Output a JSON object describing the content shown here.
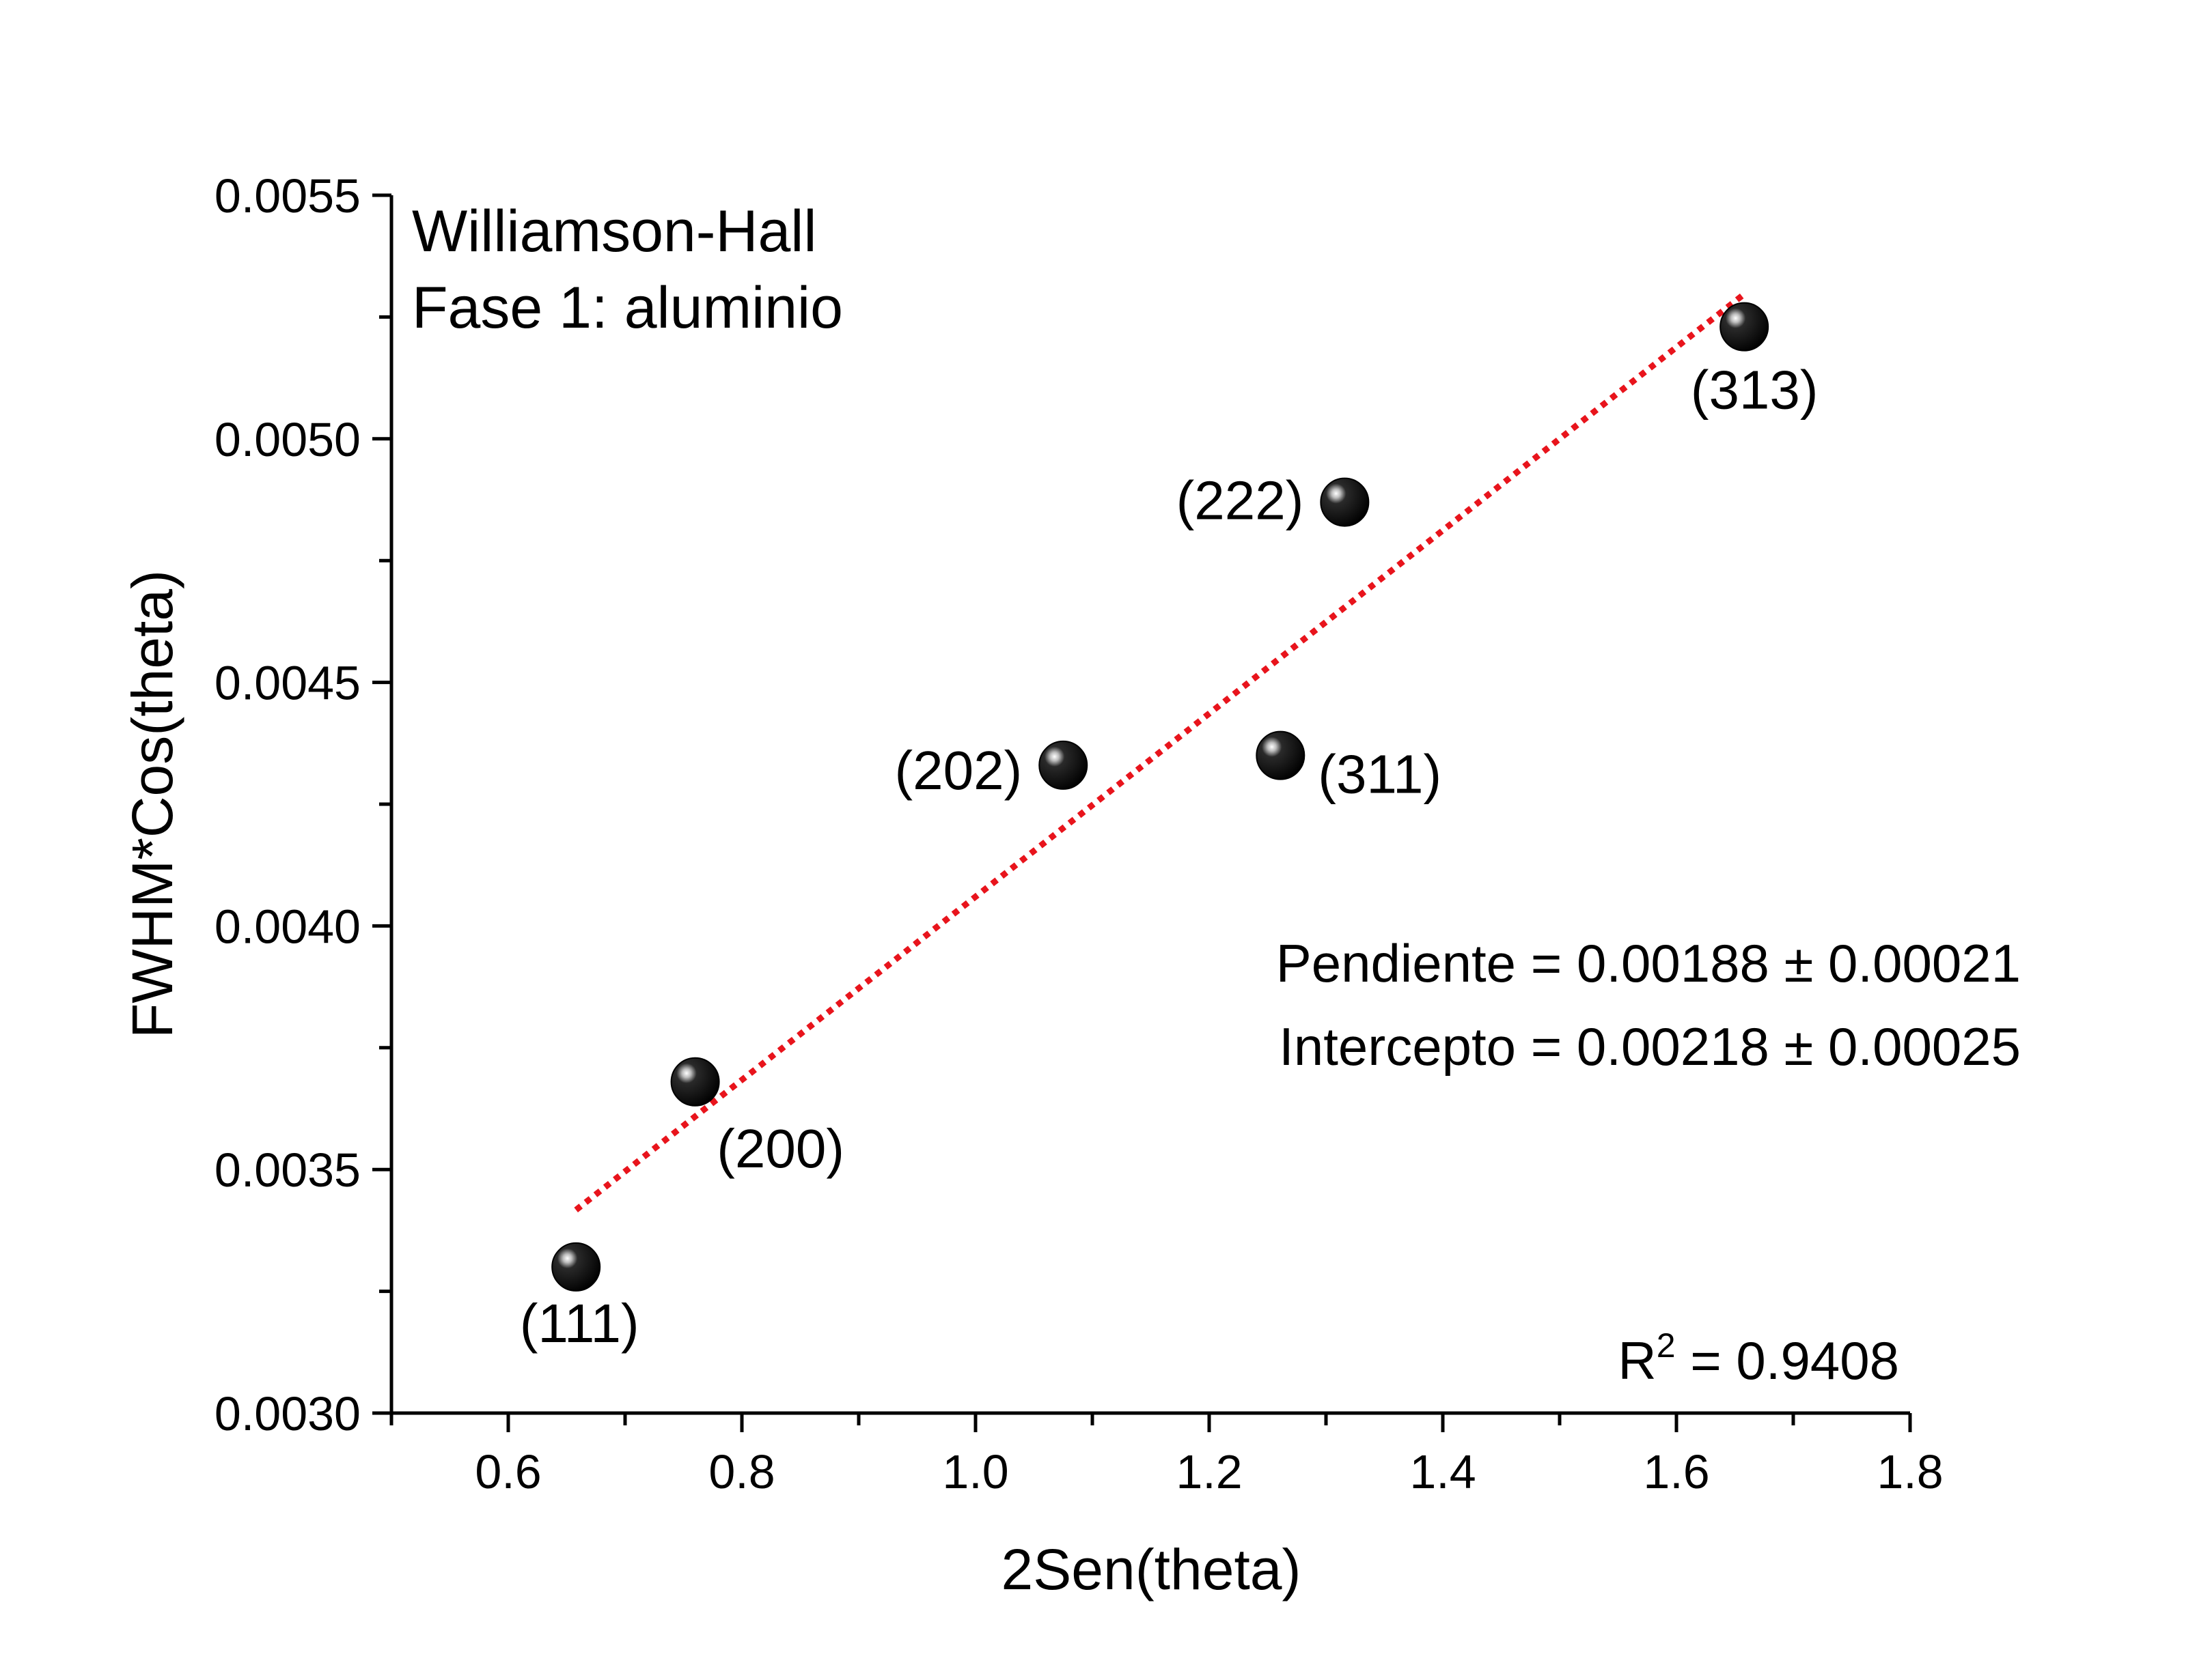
{
  "chart_data": {
    "type": "scatter",
    "title": "Williamson-Hall",
    "subtitle": "Fase 1: aluminio",
    "xlabel": "2Sen(theta)",
    "ylabel": "FWHM*Cos(theta)",
    "xlim": [
      0.5,
      1.8
    ],
    "ylim": [
      0.003,
      0.0055
    ],
    "x_ticks": [
      "0.6",
      "0.8",
      "1.0",
      "1.2",
      "1.4",
      "1.6",
      "1.8"
    ],
    "y_ticks": [
      "0.0030",
      "0.0035",
      "0.0040",
      "0.0045",
      "0.0050",
      "0.0055"
    ],
    "grid": false,
    "points": [
      {
        "label": "(111)",
        "x": 0.658,
        "y": 0.0033
      },
      {
        "label": "(200)",
        "x": 0.76,
        "y": 0.00368
      },
      {
        "label": "(202)",
        "x": 1.075,
        "y": 0.00433
      },
      {
        "label": "(311)",
        "x": 1.261,
        "y": 0.00435
      },
      {
        "label": "(222)",
        "x": 1.316,
        "y": 0.00487
      },
      {
        "label": "(313)",
        "x": 1.658,
        "y": 0.00523
      }
    ],
    "fit": {
      "slope": 0.00188,
      "intercept": 0.00218,
      "x_range": [
        0.658,
        1.658
      ],
      "color": "#e8141c",
      "style": "dotted"
    },
    "annotations": {
      "slope": "Pendiente = 0.00188 ± 0.00021",
      "intercept": "Intercepto = 0.00218 ± 0.00025",
      "r2_prefix": "R",
      "r2_sup": "2",
      "r2_value": " = 0.9408"
    },
    "marker_color": "#000000"
  }
}
